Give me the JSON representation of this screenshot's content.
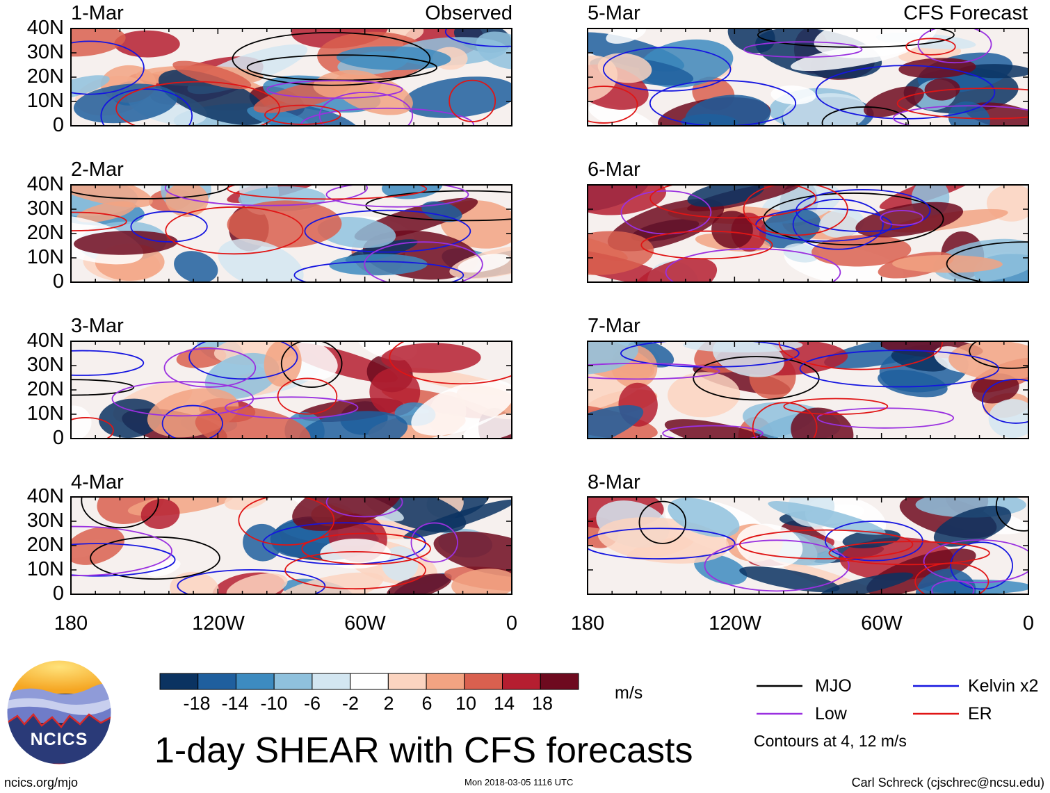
{
  "chart_data": {
    "type": "heatmap",
    "title": "1-day SHEAR with CFS forecasts",
    "units": "m/s",
    "columns": [
      "Observed",
      "CFS Forecast"
    ],
    "ylim": [
      0,
      40
    ],
    "yticks": [
      "40N",
      "30N",
      "20N",
      "10N",
      "0"
    ],
    "xlim": [
      -180,
      0
    ],
    "xticks": [
      "180",
      "120W",
      "60W",
      "0"
    ],
    "panels": [
      {
        "date": "1-Mar",
        "source": "Observed",
        "header": "Observed"
      },
      {
        "date": "2-Mar",
        "source": "Observed",
        "header": ""
      },
      {
        "date": "3-Mar",
        "source": "Observed",
        "header": ""
      },
      {
        "date": "4-Mar",
        "source": "Observed",
        "header": ""
      },
      {
        "date": "5-Mar",
        "source": "CFS Forecast",
        "header": "CFS Forecast"
      },
      {
        "date": "6-Mar",
        "source": "CFS Forecast",
        "header": ""
      },
      {
        "date": "7-Mar",
        "source": "CFS Forecast",
        "header": ""
      },
      {
        "date": "8-Mar",
        "source": "CFS Forecast",
        "header": ""
      }
    ],
    "colorbar": {
      "labels": [
        "-18",
        "-14",
        "-10",
        "-6",
        "-2",
        "2",
        "6",
        "10",
        "14",
        "18"
      ],
      "colors": [
        "#0b3361",
        "#1f5f9e",
        "#3d8bc0",
        "#8fc1dd",
        "#d3e6f1",
        "#ffffff",
        "#fbd4c0",
        "#f2a382",
        "#d9604f",
        "#b51e30",
        "#6e0a1f"
      ],
      "units": "m/s"
    },
    "legend": [
      {
        "label": "MJO",
        "color": "#000000"
      },
      {
        "label": "Kelvin x2",
        "color": "#1515e0"
      },
      {
        "label": "Low",
        "color": "#9a30e0"
      },
      {
        "label": "ER",
        "color": "#e01515"
      }
    ],
    "contour_note": "Contours at 4, 12 m/s"
  },
  "footer": {
    "left": "ncics.org/mjo",
    "center": "Mon 2018-03-05 1116 UTC",
    "right": "Carl Schreck (cjschrec@ncsu.edu)"
  },
  "logo": {
    "text": "NCICS"
  }
}
